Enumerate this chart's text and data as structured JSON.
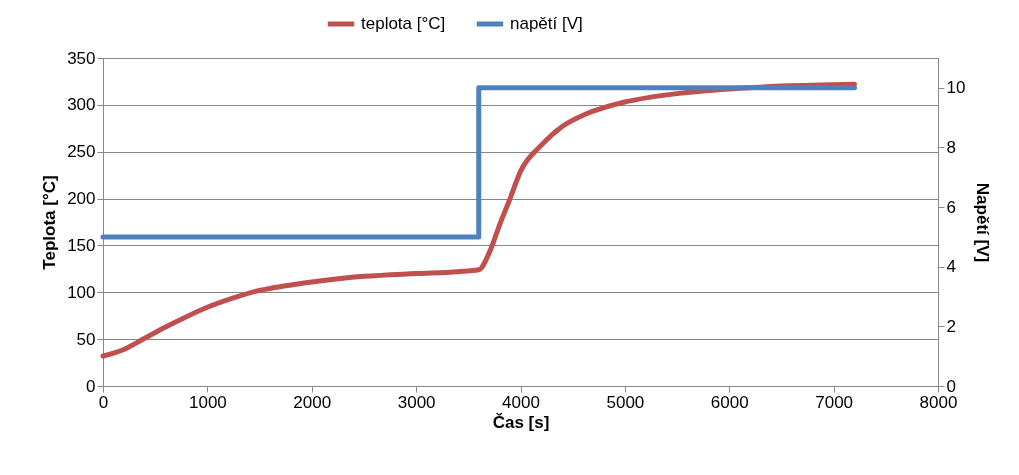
{
  "chart_data": {
    "type": "line",
    "xlabel": "Čas [s]",
    "ylabel": "Teplota [°C]",
    "y2label": "Napětí [V]",
    "xlim": [
      0,
      8000
    ],
    "xticks": [
      0,
      1000,
      2000,
      3000,
      4000,
      5000,
      6000,
      7000,
      8000
    ],
    "ylim": [
      0,
      350
    ],
    "yticks": [
      0,
      50,
      100,
      150,
      200,
      250,
      300,
      350
    ],
    "y2lim": [
      0,
      11
    ],
    "y2ticks": [
      0,
      2,
      4,
      6,
      8,
      10
    ],
    "grid": "y",
    "legend": "top",
    "series": [
      {
        "name": "teplota [°C]",
        "color": "#c0504d",
        "type": "line",
        "x": [
          0,
          200,
          400,
          600,
          800,
          1000,
          1250,
          1500,
          1750,
          2000,
          2500,
          3000,
          3400,
          3600,
          3700,
          3800,
          3900,
          4000,
          4200,
          4400,
          4600,
          4800,
          5000,
          5500,
          6000,
          6500,
          7200
        ],
        "values": [
          32,
          39,
          51,
          63,
          74,
          84,
          94,
          102,
          107,
          111,
          117,
          120,
          122,
          124,
          142,
          172,
          200,
          229,
          257,
          277,
          289,
          297,
          303,
          312,
          317,
          320,
          322
        ]
      },
      {
        "name": "napětí [V]",
        "color": "#4f81bd",
        "type": "step",
        "axis": "y2",
        "x": [
          0,
          3600,
          7200
        ],
        "values": [
          5,
          10,
          10
        ]
      }
    ]
  }
}
